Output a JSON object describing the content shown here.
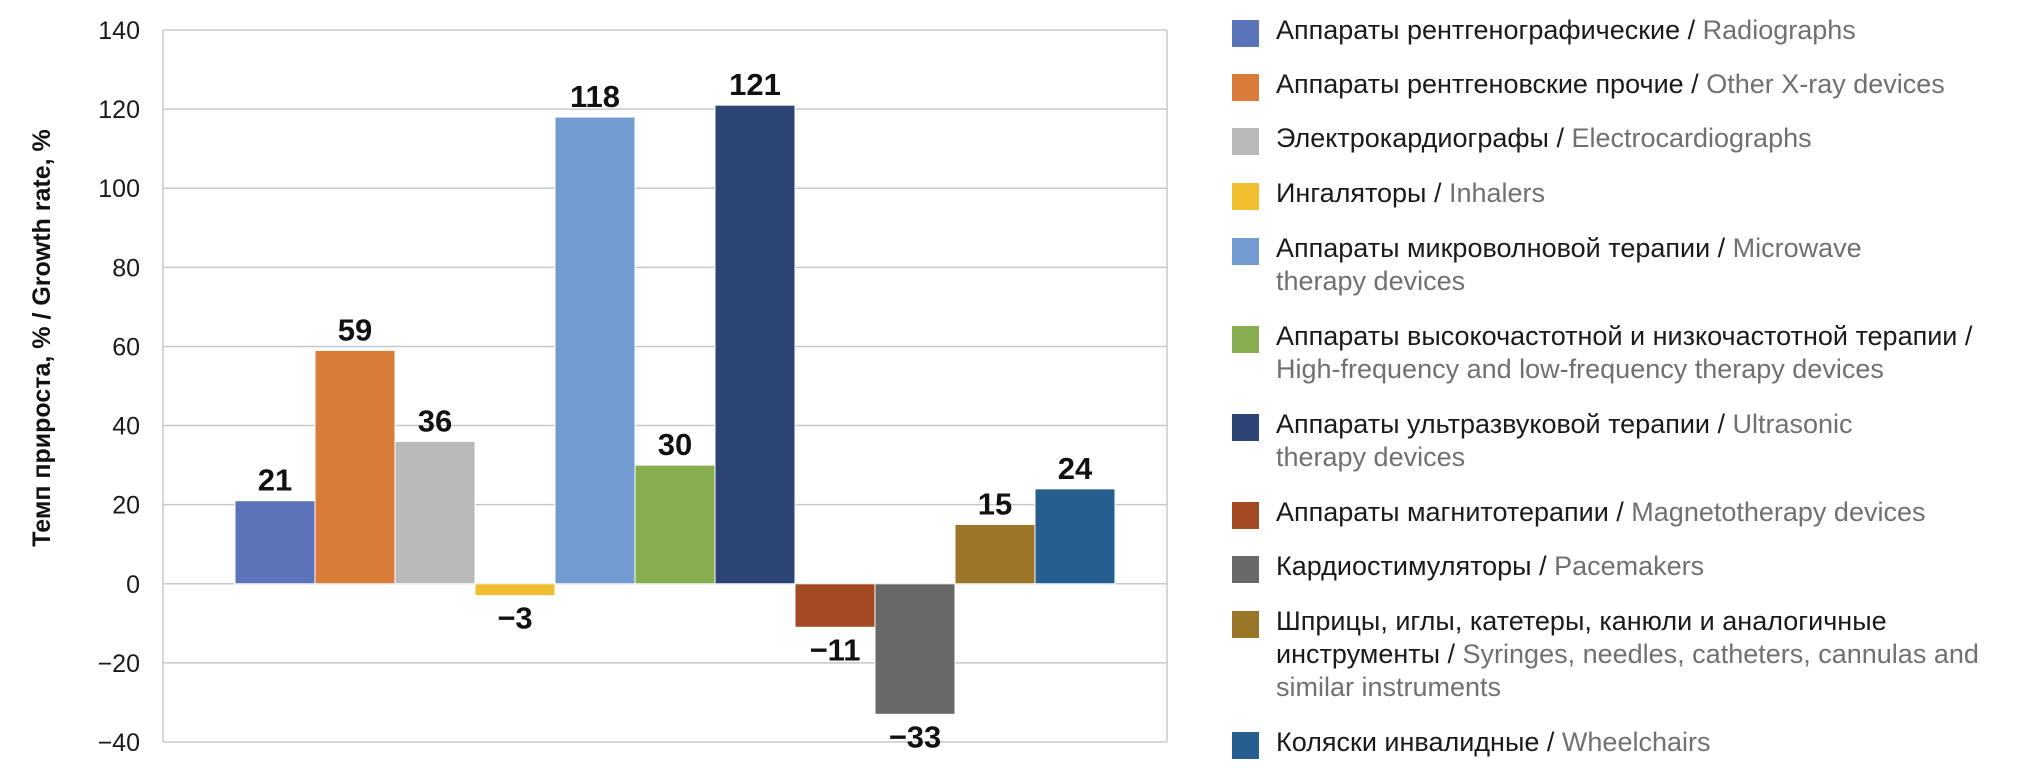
{
  "chart_data": {
    "type": "bar",
    "ylabel": "Темп прироста, % / Growth rate, %",
    "ylim": [
      -40,
      140
    ],
    "yticks": [
      "140",
      "120",
      "100",
      "80",
      "60",
      "40",
      "20",
      "0",
      "−20",
      "−40"
    ],
    "ytick_values": [
      140,
      120,
      100,
      80,
      60,
      40,
      20,
      0,
      -20,
      -40
    ],
    "grid": true,
    "legend_position": "right",
    "categories": [
      "Аппараты рентгенографические / Radiographs",
      "Аппараты рентгеновские прочие / Other X-ray devices",
      "Электрокардиографы / Electrocardiographs",
      "Ингаляторы / Inhalers",
      "Аппараты микроволновой терапии / Microwave therapy devices",
      "Аппараты высокочастотной и низкочастотной терапии / High-frequency and low-frequency therapy devices",
      "Аппараты ультразвуковой терапии / Ultrasonic therapy devices",
      "Аппараты магнитотерапии / Magnetotherapy devices",
      "Кардиостимуляторы / Pacemakers",
      "Шприцы, иглы, катетеры, канюли и аналогичные инструменты / Syringes, needles, catheters, cannulas and similar instruments",
      "Коляски инвалидные / Wheelchairs"
    ],
    "values": [
      21,
      59,
      36,
      -3,
      118,
      30,
      121,
      -11,
      -33,
      15,
      24
    ],
    "value_labels": [
      "21",
      "59",
      "36",
      "−3",
      "118",
      "30",
      "121",
      "−11",
      "−33",
      "15",
      "24"
    ],
    "colors": [
      "#5b73b8",
      "#d97c3a",
      "#b9b9b9",
      "#f0be2f",
      "#729bd2",
      "#88ad4e",
      "#2c4574",
      "#a34a24",
      "#686868",
      "#9c7628",
      "#255e8f"
    ]
  },
  "legend": [
    {
      "ru": "Аппараты рентгенографические",
      "en": "Radiographs"
    },
    {
      "ru": "Аппараты рентгеновские прочие",
      "en": "Other X-ray devices"
    },
    {
      "ru": "Электрокардиографы",
      "en": "Electrocardiographs"
    },
    {
      "ru": "Ингаляторы",
      "en": "Inhalers"
    },
    {
      "ru": "Аппараты микроволновой терапии",
      "en": "Microwave therapy devices"
    },
    {
      "ru": "Аппараты высокочастотной и низкочастотной терапии",
      "en": "High-frequency and low-frequency therapy devices"
    },
    {
      "ru": "Аппараты ультразвуковой терапии",
      "en": "Ultrasonic therapy devices"
    },
    {
      "ru": "Аппараты магнитотерапии",
      "en": "Magnetotherapy devices"
    },
    {
      "ru": "Кардиостимуляторы",
      "en": "Pacemakers"
    },
    {
      "ru": "Шприцы, иглы, катетеры, канюли и аналогичные инструменты",
      "en": "Syringes, needles, catheters, cannulas and similar instruments"
    },
    {
      "ru": "Коляски инвалидные",
      "en": "Wheelchairs"
    }
  ]
}
